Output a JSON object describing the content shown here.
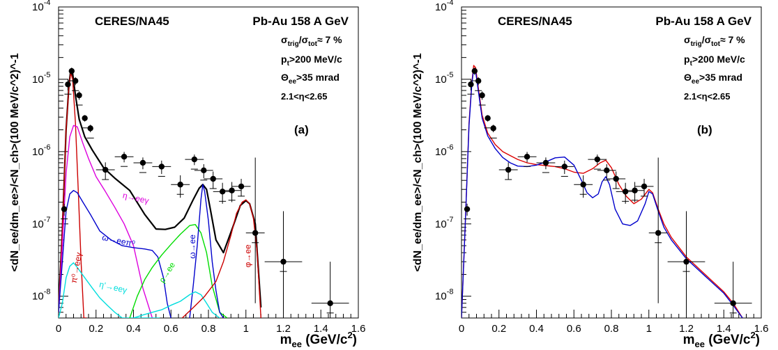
{
  "chart_data": [
    {
      "type": "line",
      "panel_label": "(a)",
      "title_left": "CERES/NA45",
      "title_right": "Pb-Au 158 A GeV",
      "xlabel": "m",
      "xlabel_sub": "ee",
      "xlabel_unit": " (GeV/c",
      "xlabel_unit_sup": "2",
      "xlabel_unit_end": ")",
      "ylabel": "<dN_ee/dm_ee>/<N_ch>(100 MeV/c^2)^-1",
      "xlim": [
        0,
        1.6
      ],
      "ylim": [
        5e-09,
        0.0001
      ],
      "yscale": "log",
      "x_ticks": [
        "0",
        "0.2",
        "0.4",
        "0.6",
        "0.8",
        "1",
        "1.2",
        "1.4",
        "1.6"
      ],
      "y_ticks": [
        "10",
        "10",
        "10",
        "10",
        "10"
      ],
      "y_tick_exponents": [
        "-8",
        "-7",
        "-6",
        "-5",
        "-4"
      ],
      "cuts": {
        "sigma": "σ",
        "trig_sub": "trig",
        "slash": "/σ",
        "tot_sub": "tot",
        "approx": "≈ 7 %",
        "pt": "p",
        "pt_sub": "t",
        "pt_rest": ">200 MeV/c",
        "theta": "Θ",
        "theta_sub": "ee",
        "theta_rest": ">35 mrad",
        "eta": "2.1<η<2.65"
      },
      "data_points": [
        {
          "x": 0.03,
          "y": 1.6e-07,
          "ey_up": 3e-08,
          "ey_dn": 3e-08
        },
        {
          "x": 0.05,
          "y": 8.5e-06,
          "ey_up": 1.5e-06,
          "ey_dn": 1.5e-06
        },
        {
          "x": 0.07,
          "y": 1.3e-05,
          "ey_up": 1.5e-06,
          "ey_dn": 1.5e-06
        },
        {
          "x": 0.09,
          "y": 9.5e-06,
          "ey_up": 1.2e-06,
          "ey_dn": 1.2e-06
        },
        {
          "x": 0.11,
          "y": 6e-06,
          "ey_up": 8e-07,
          "ey_dn": 8e-07
        },
        {
          "x": 0.14,
          "y": 2.9e-06,
          "ey_up": 3e-07,
          "ey_dn": 3e-07
        },
        {
          "x": 0.17,
          "y": 2.1e-06,
          "ey_up": 2.5e-07,
          "ey_dn": 2.5e-07
        },
        {
          "x": 0.25,
          "y": 5.6e-07,
          "ey_up": 1.5e-07,
          "ey_dn": 1.5e-07
        },
        {
          "x": 0.35,
          "y": 8.5e-07,
          "ey_up": 1.4e-07,
          "ey_dn": 1.4e-07
        },
        {
          "x": 0.45,
          "y": 7e-07,
          "ey_up": 1.3e-07,
          "ey_dn": 1.3e-07
        },
        {
          "x": 0.55,
          "y": 6.2e-07,
          "ey_up": 1.3e-07,
          "ey_dn": 1.3e-07
        },
        {
          "x": 0.65,
          "y": 3.5e-07,
          "ey_up": 1.2e-07,
          "ey_dn": 1.2e-07
        },
        {
          "x": 0.725,
          "y": 7.8e-07,
          "ey_up": 1.3e-07,
          "ey_dn": 1.3e-07
        },
        {
          "x": 0.775,
          "y": 5.5e-07,
          "ey_up": 1.2e-07,
          "ey_dn": 1.2e-07
        },
        {
          "x": 0.825,
          "y": 4.2e-07,
          "ey_up": 1.1e-07,
          "ey_dn": 1.1e-07
        },
        {
          "x": 0.875,
          "y": 2.8e-07,
          "ey_up": 9e-08,
          "ey_dn": 9e-08
        },
        {
          "x": 0.925,
          "y": 2.9e-07,
          "ey_up": 9e-08,
          "ey_dn": 9e-08
        },
        {
          "x": 0.975,
          "y": 3.3e-07,
          "ey_up": 9e-08,
          "ey_dn": 9e-08
        },
        {
          "x": 1.05,
          "y": 7.5e-08,
          "ey_up": 7.5e-07,
          "ey_dn": 6.7e-08
        },
        {
          "x": 1.2,
          "y": 3e-08,
          "ey_up": 1.2e-07,
          "ey_dn": 2.6e-08
        },
        {
          "x": 1.45,
          "y": 8e-09,
          "ey_up": 2.2e-08,
          "ey_dn": 6e-09
        }
      ],
      "series": [
        {
          "color": "#000000",
          "x": [
            0.0,
            0.02,
            0.04,
            0.055,
            0.065,
            0.075,
            0.09,
            0.11,
            0.14,
            0.18,
            0.24,
            0.3,
            0.38,
            0.46,
            0.52,
            0.57,
            0.62,
            0.67,
            0.72,
            0.75,
            0.77,
            0.79,
            0.81,
            0.84,
            0.88,
            0.93,
            0.97,
            1.0,
            1.02,
            1.05,
            1.08
          ],
          "y": [
            7e-09,
            8e-08,
            2e-06,
            8e-06,
            1.35e-05,
            1.2e-05,
            6e-06,
            2.8e-06,
            1.6e-06,
            1.05e-06,
            6e-07,
            4.3e-07,
            2.9e-07,
            1.35e-07,
            8.5e-08,
            8.4e-08,
            9e-08,
            1.2e-07,
            2.2e-07,
            3.1e-07,
            3.5e-07,
            3e-07,
            1.6e-07,
            6e-08,
            4e-08,
            9e-08,
            1.8e-07,
            2.1e-07,
            1.9e-07,
            1e-07,
            7e-09
          ]
        },
        {
          "color": "#cc0000",
          "x": [
            0.0,
            0.02,
            0.04,
            0.055,
            0.065,
            0.075,
            0.09,
            0.105,
            0.12,
            0.135,
            0.15
          ],
          "y": [
            6e-09,
            8e-08,
            2e-06,
            7.5e-06,
            1.25e-05,
            1e-05,
            2.5e-06,
            3e-07,
            3e-08,
            5e-09,
            5e-09
          ]
        },
        {
          "color": "#dd00dd",
          "x": [
            0.0,
            0.02,
            0.04,
            0.06,
            0.08,
            0.1,
            0.13,
            0.16,
            0.2,
            0.25,
            0.3,
            0.35,
            0.4,
            0.45,
            0.5
          ],
          "y": [
            6e-09,
            5e-08,
            5e-07,
            1.6e-06,
            2.3e-06,
            2.2e-06,
            1.3e-06,
            8e-07,
            4.5e-07,
            2.8e-07,
            1.7e-07,
            1e-07,
            5e-08,
            1.3e-08,
            5e-09
          ]
        },
        {
          "color": "#0000cc",
          "x": [
            0.0,
            0.02,
            0.04,
            0.06,
            0.08,
            0.1,
            0.13,
            0.17,
            0.22,
            0.28,
            0.34,
            0.4,
            0.46,
            0.5,
            0.53,
            0.56,
            0.58,
            0.6
          ],
          "y": [
            6e-09,
            3e-08,
            1.5e-07,
            2.6e-07,
            2.9e-07,
            2.7e-07,
            2e-07,
            1.35e-07,
            8e-08,
            6e-08,
            5e-08,
            4.7e-08,
            4.5e-08,
            4.3e-08,
            3.5e-08,
            1.8e-08,
            8e-09,
            5e-09
          ]
        },
        {
          "color": "#00dddd",
          "x": [
            0.0,
            0.02,
            0.04,
            0.06,
            0.08,
            0.1,
            0.14,
            0.18,
            0.22,
            0.26,
            0.3,
            0.34,
            0.38,
            0.42,
            0.46,
            0.5,
            0.54
          ],
          "y": [
            5e-09,
            8e-09,
            1.8e-08,
            2.6e-08,
            2.9e-08,
            2.5e-08,
            1.8e-08,
            1.3e-08,
            9.5e-09,
            7.5e-09,
            6e-09,
            5e-09,
            5e-09,
            5e-09,
            5e-09,
            5e-09,
            5e-09
          ]
        },
        {
          "color": "#00dd00",
          "x": [
            0.38,
            0.42,
            0.46,
            0.5,
            0.55,
            0.6,
            0.65,
            0.7,
            0.73,
            0.76,
            0.79,
            0.82,
            0.86,
            0.9
          ],
          "y": [
            5e-09,
            1e-08,
            1.7e-08,
            2.5e-08,
            3.7e-08,
            5.2e-08,
            7.2e-08,
            9.5e-08,
            9.8e-08,
            7.5e-08,
            4e-08,
            1.4e-08,
            6e-09,
            5e-09
          ]
        },
        {
          "color": "#0000cc",
          "x": [
            0.7,
            0.72,
            0.74,
            0.76,
            0.77,
            0.78,
            0.8,
            0.82,
            0.84,
            0.86,
            0.88
          ],
          "y": [
            5e-09,
            1.5e-08,
            5e-08,
            2.2e-07,
            3.5e-07,
            2.8e-07,
            1.1e-07,
            3e-08,
            1.2e-08,
            6e-09,
            5e-09
          ]
        },
        {
          "color": "#00dddd",
          "x": [
            0.4,
            0.45,
            0.5,
            0.55,
            0.6,
            0.65,
            0.7,
            0.73,
            0.76,
            0.79,
            0.82,
            0.86
          ],
          "y": [
            5e-09,
            5.5e-09,
            6e-09,
            6.5e-09,
            7.5e-09,
            8.5e-09,
            1.05e-08,
            1.15e-08,
            1.05e-08,
            8e-09,
            6e-09,
            5e-09
          ]
        },
        {
          "color": "#cc0000",
          "x": [
            0.66,
            0.72,
            0.78,
            0.84,
            0.88,
            0.92,
            0.95,
            0.98,
            1.0,
            1.02,
            1.04,
            1.06,
            1.08
          ],
          "y": [
            5e-09,
            7e-09,
            1e-08,
            1.6e-08,
            3e-08,
            7e-08,
            1.4e-07,
            2e-07,
            2.15e-07,
            1.9e-07,
            1.2e-07,
            4e-08,
            5e-09
          ]
        }
      ],
      "labels": [
        {
          "text": "π⁰→eeγ",
          "color": "#cc0000"
        },
        {
          "text": "η→eeγ",
          "color": "#dd00dd"
        },
        {
          "text": "ω→eeπ⁰",
          "color": "#0000cc"
        },
        {
          "text": "η'→eeγ",
          "color": "#00dddd"
        },
        {
          "text": "ρ→ee",
          "color": "#00dd00"
        },
        {
          "text": "ω→ee",
          "color": "#0000cc"
        },
        {
          "text": "φ→ee",
          "color": "#cc0000"
        }
      ]
    },
    {
      "type": "line",
      "panel_label": "(b)",
      "title_left": "CERES/NA45",
      "title_right": "Pb-Au 158 A GeV",
      "xlabel": "m",
      "xlabel_sub": "ee",
      "xlabel_unit": " (GeV/c",
      "xlabel_unit_sup": "2",
      "xlabel_unit_end": ")",
      "ylabel": "<dN_ee/dm_ee>/<N_ch>(100 MeV/c^2)^-1",
      "xlim": [
        0,
        1.6
      ],
      "ylim": [
        5e-09,
        0.0001
      ],
      "yscale": "log",
      "x_ticks": [
        "0",
        "0.2",
        "0.4",
        "0.6",
        "0.8",
        "1",
        "1.2",
        "1.4",
        "1.6"
      ],
      "y_ticks": [
        "10",
        "10",
        "10",
        "10",
        "10"
      ],
      "y_tick_exponents": [
        "-8",
        "-7",
        "-6",
        "-5",
        "-4"
      ],
      "cuts": {
        "sigma": "σ",
        "trig_sub": "trig",
        "slash": "/σ",
        "tot_sub": "tot",
        "approx": "≈ 7 %",
        "pt": "p",
        "pt_sub": "t",
        "pt_rest": ">200 MeV/c",
        "theta": "Θ",
        "theta_sub": "ee",
        "theta_rest": ">35 mrad",
        "eta": "2.1<η<2.65"
      },
      "data_points": [
        {
          "x": 0.03,
          "y": 1.6e-07,
          "ey_up": 3e-08,
          "ey_dn": 3e-08
        },
        {
          "x": 0.05,
          "y": 8.5e-06,
          "ey_up": 1.5e-06,
          "ey_dn": 1.5e-06
        },
        {
          "x": 0.07,
          "y": 1.3e-05,
          "ey_up": 1.5e-06,
          "ey_dn": 1.5e-06
        },
        {
          "x": 0.09,
          "y": 9.5e-06,
          "ey_up": 1.2e-06,
          "ey_dn": 1.2e-06
        },
        {
          "x": 0.11,
          "y": 6e-06,
          "ey_up": 8e-07,
          "ey_dn": 8e-07
        },
        {
          "x": 0.14,
          "y": 2.9e-06,
          "ey_up": 3e-07,
          "ey_dn": 3e-07
        },
        {
          "x": 0.17,
          "y": 2.1e-06,
          "ey_up": 2.5e-07,
          "ey_dn": 2.5e-07
        },
        {
          "x": 0.25,
          "y": 5.6e-07,
          "ey_up": 1.5e-07,
          "ey_dn": 1.5e-07
        },
        {
          "x": 0.35,
          "y": 8.5e-07,
          "ey_up": 1.4e-07,
          "ey_dn": 1.4e-07
        },
        {
          "x": 0.45,
          "y": 7e-07,
          "ey_up": 1.3e-07,
          "ey_dn": 1.3e-07
        },
        {
          "x": 0.55,
          "y": 6.2e-07,
          "ey_up": 1.3e-07,
          "ey_dn": 1.3e-07
        },
        {
          "x": 0.65,
          "y": 3.5e-07,
          "ey_up": 1.2e-07,
          "ey_dn": 1.2e-07
        },
        {
          "x": 0.725,
          "y": 7.8e-07,
          "ey_up": 1.3e-07,
          "ey_dn": 1.3e-07
        },
        {
          "x": 0.775,
          "y": 5.5e-07,
          "ey_up": 1.2e-07,
          "ey_dn": 1.2e-07
        },
        {
          "x": 0.825,
          "y": 4.2e-07,
          "ey_up": 1.1e-07,
          "ey_dn": 1.1e-07
        },
        {
          "x": 0.875,
          "y": 2.8e-07,
          "ey_up": 9e-08,
          "ey_dn": 9e-08
        },
        {
          "x": 0.925,
          "y": 2.9e-07,
          "ey_up": 9e-08,
          "ey_dn": 9e-08
        },
        {
          "x": 0.975,
          "y": 3.3e-07,
          "ey_up": 9e-08,
          "ey_dn": 9e-08
        },
        {
          "x": 1.05,
          "y": 7.5e-08,
          "ey_up": 7.5e-07,
          "ey_dn": 6.7e-08
        },
        {
          "x": 1.2,
          "y": 3e-08,
          "ey_up": 1.2e-07,
          "ey_dn": 2.6e-08
        },
        {
          "x": 1.45,
          "y": 8e-09,
          "ey_up": 2.2e-08,
          "ey_dn": 6e-09
        }
      ],
      "series": [
        {
          "color": "#dd0000",
          "x": [
            0.0,
            0.02,
            0.04,
            0.055,
            0.065,
            0.075,
            0.09,
            0.11,
            0.14,
            0.18,
            0.22,
            0.26,
            0.3,
            0.35,
            0.4,
            0.45,
            0.5,
            0.55,
            0.6,
            0.65,
            0.7,
            0.74,
            0.77,
            0.8,
            0.84,
            0.88,
            0.92,
            0.96,
            1.0,
            1.02,
            1.05,
            1.08,
            1.12,
            1.2,
            1.3,
            1.4,
            1.45,
            1.5
          ],
          "y": [
            5e-09,
            1e-07,
            2.5e-06,
            9e-06,
            1.55e-05,
            1.45e-05,
            7.5e-06,
            3.2e-06,
            1.8e-06,
            1.25e-06,
            1e-06,
            8.8e-07,
            7.8e-07,
            7e-07,
            6.6e-07,
            6.4e-07,
            6.2e-07,
            5.8e-07,
            5.2e-07,
            5e-07,
            5.8e-07,
            7e-07,
            7.6e-07,
            6e-07,
            3.5e-07,
            2.4e-07,
            1.9e-07,
            2.2e-07,
            3e-07,
            2.7e-07,
            1.6e-07,
            1e-07,
            6.5e-08,
            3.5e-08,
            2e-08,
            1.15e-08,
            8e-09,
            5e-09
          ]
        },
        {
          "color": "#0000cc",
          "x": [
            0.0,
            0.02,
            0.04,
            0.055,
            0.065,
            0.075,
            0.09,
            0.11,
            0.14,
            0.18,
            0.22,
            0.26,
            0.3,
            0.35,
            0.4,
            0.45,
            0.5,
            0.55,
            0.6,
            0.64,
            0.67,
            0.7,
            0.73,
            0.75,
            0.77,
            0.79,
            0.82,
            0.86,
            0.9,
            0.94,
            0.98,
            1.0,
            1.02,
            1.05,
            1.08,
            1.12,
            1.2,
            1.3,
            1.4,
            1.45,
            1.5
          ],
          "y": [
            5e-09,
            1e-07,
            2.3e-06,
            8.5e-06,
            1.4e-05,
            1.3e-05,
            6.8e-06,
            2.9e-06,
            1.65e-06,
            1.1e-06,
            8.3e-07,
            7e-07,
            6.3e-07,
            6.2e-07,
            6.5e-07,
            7.2e-07,
            8.2e-07,
            8.4e-07,
            6.5e-07,
            4e-07,
            2.7e-07,
            2.3e-07,
            2.6e-07,
            3.8e-07,
            4.5e-07,
            3.5e-07,
            1.6e-07,
            1e-07,
            9.5e-08,
            1.1e-07,
            1.9e-07,
            2.8e-07,
            2.6e-07,
            1.5e-07,
            9e-08,
            6e-08,
            3.3e-08,
            1.9e-08,
            1.1e-08,
            7.5e-09,
            5e-09
          ]
        }
      ],
      "labels": []
    }
  ]
}
